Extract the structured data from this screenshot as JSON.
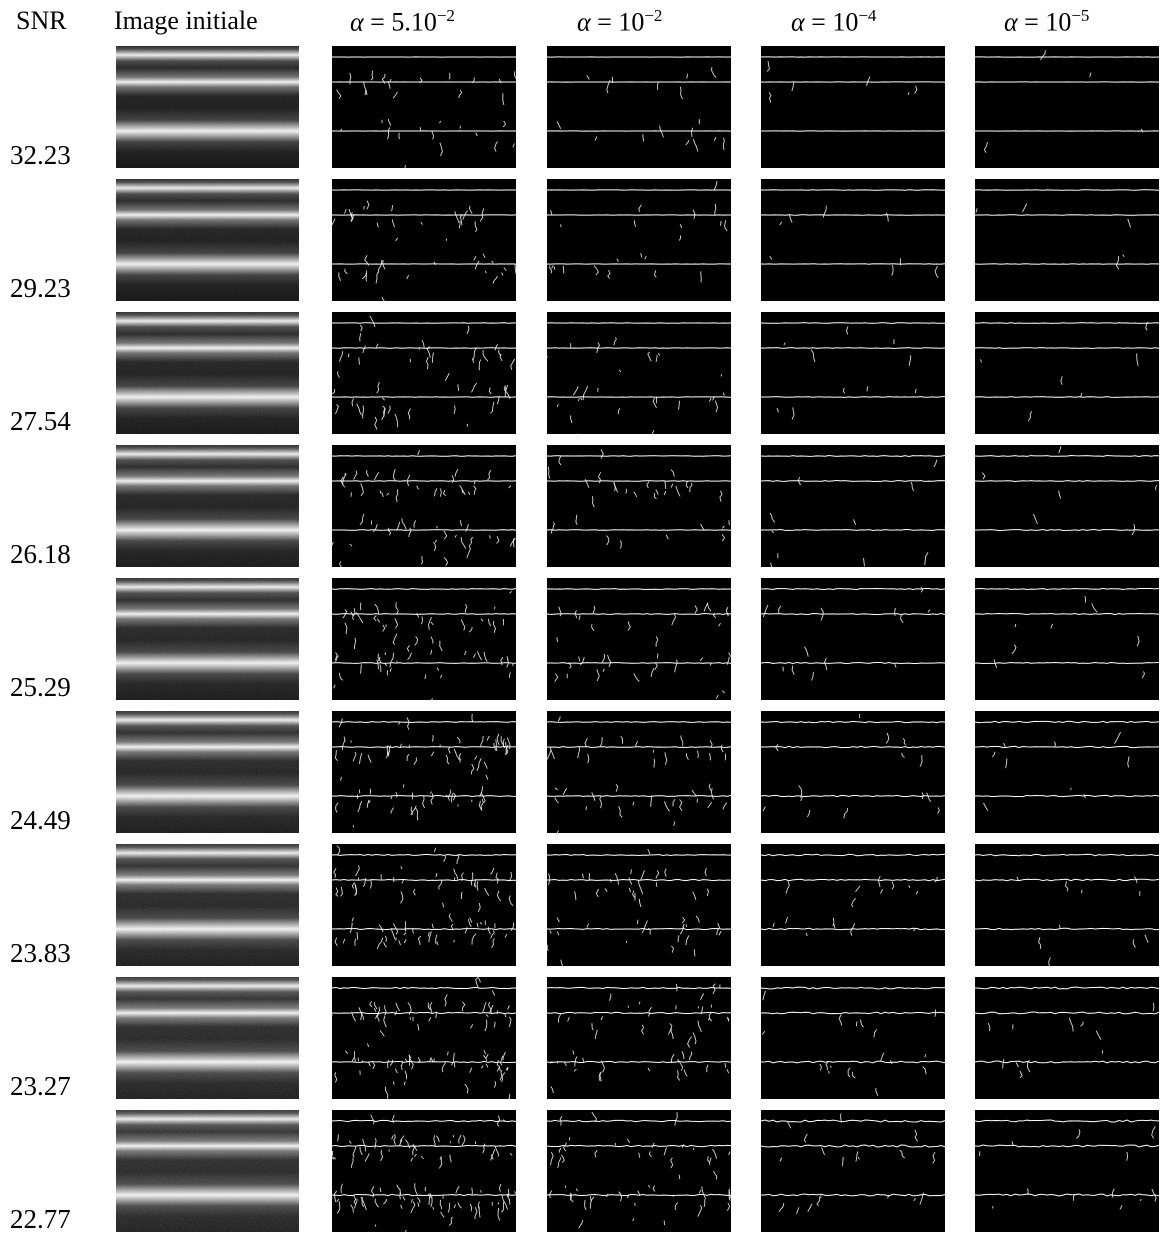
{
  "headers": {
    "snr": "SNR",
    "initial": "Image initiale",
    "alphas": [
      {
        "symbol": "α",
        "eq": " = ",
        "base": "5.10",
        "exp": "−2"
      },
      {
        "symbol": "α",
        "eq": " = ",
        "base": "10",
        "exp": "−2"
      },
      {
        "symbol": "α",
        "eq": " = ",
        "base": "10",
        "exp": "−4"
      },
      {
        "symbol": "α",
        "eq": " = ",
        "base": "10",
        "exp": "−5"
      }
    ]
  },
  "rows": [
    {
      "snr": "32.23"
    },
    {
      "snr": "29.23"
    },
    {
      "snr": "27.54"
    },
    {
      "snr": "26.18"
    },
    {
      "snr": "25.29"
    },
    {
      "snr": "24.49"
    },
    {
      "snr": "23.83"
    },
    {
      "snr": "23.27"
    },
    {
      "snr": "22.77"
    }
  ],
  "colors": {
    "background": "#ffffff",
    "panel": "#000000",
    "edge": "#ffffff"
  }
}
